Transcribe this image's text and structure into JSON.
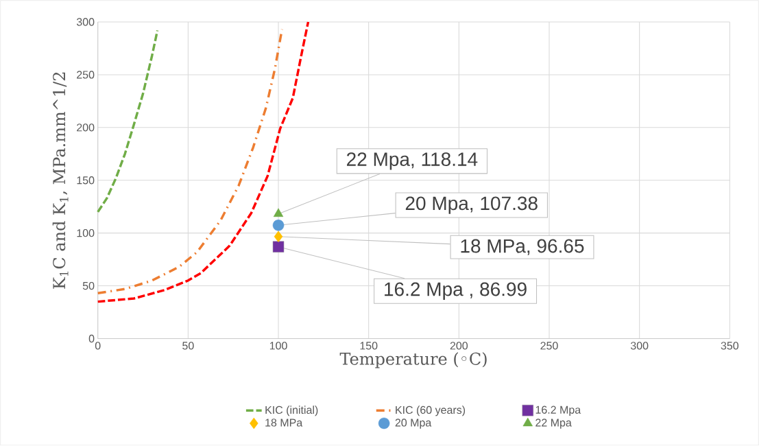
{
  "chart_data": {
    "type": "line",
    "xlabel": "Temperature (◦C)",
    "ylabel": "K$_{1}$C and K$_{1}$, MPa.mm^1/2",
    "xlim": [
      0,
      350
    ],
    "xticks": [
      0,
      50,
      100,
      150,
      200,
      250,
      300,
      350
    ],
    "ylim": [
      0,
      300
    ],
    "yticks": [
      0,
      50,
      100,
      150,
      200,
      250,
      300
    ],
    "grid": true,
    "legend": "bottom",
    "series": [
      {
        "name": "KIC (initial)",
        "color": "#70ad47",
        "line_style": "dashed",
        "marker": "none",
        "x": [
          0,
          5,
          10,
          15,
          20,
          25,
          30,
          33
        ],
        "values": [
          120,
          133,
          152,
          175,
          203,
          232,
          268,
          292
        ]
      },
      {
        "name": "KIC (60 years)",
        "color": "#ed7d31",
        "line_style": "dashdot",
        "marker": "none",
        "x": [
          0,
          15,
          30,
          45,
          55,
          68,
          78,
          86,
          93,
          98,
          102
        ],
        "values": [
          43,
          47,
          55,
          68,
          82,
          112,
          145,
          181,
          218,
          255,
          293
        ]
      },
      {
        "color": "#ff0000",
        "line_style": "dashed",
        "marker": "none",
        "x": [
          0,
          20,
          37,
          50,
          57,
          73,
          85,
          94,
          101,
          108,
          113,
          116.5
        ],
        "values": [
          35,
          38,
          46,
          55,
          62,
          88,
          119,
          154,
          199,
          228,
          271,
          300
        ]
      },
      {
        "name": "16.2 Mpa",
        "type": "scatter",
        "color": "#7030a0",
        "marker": "square",
        "x": [
          100
        ],
        "values": [
          86.99
        ],
        "value_labels": [
          "16.2 Mpa , 86.99"
        ]
      },
      {
        "name": "18 MPa",
        "type": "scatter",
        "color": "#ffc000",
        "marker": "diamond",
        "x": [
          100
        ],
        "values": [
          96.65
        ],
        "value_labels": [
          "18 MPa, 96.65"
        ]
      },
      {
        "name": "20 Mpa",
        "type": "scatter",
        "color": "#5b9bd5",
        "marker": "circle",
        "x": [
          100
        ],
        "values": [
          107.38
        ],
        "value_labels": [
          "20 Mpa, 107.38"
        ]
      },
      {
        "name": "22 Mpa",
        "type": "scatter",
        "color": "#70ad47",
        "marker": "triangle",
        "x": [
          100
        ],
        "values": [
          118.14
        ],
        "value_labels": [
          "22 Mpa, 118.14"
        ]
      }
    ]
  }
}
